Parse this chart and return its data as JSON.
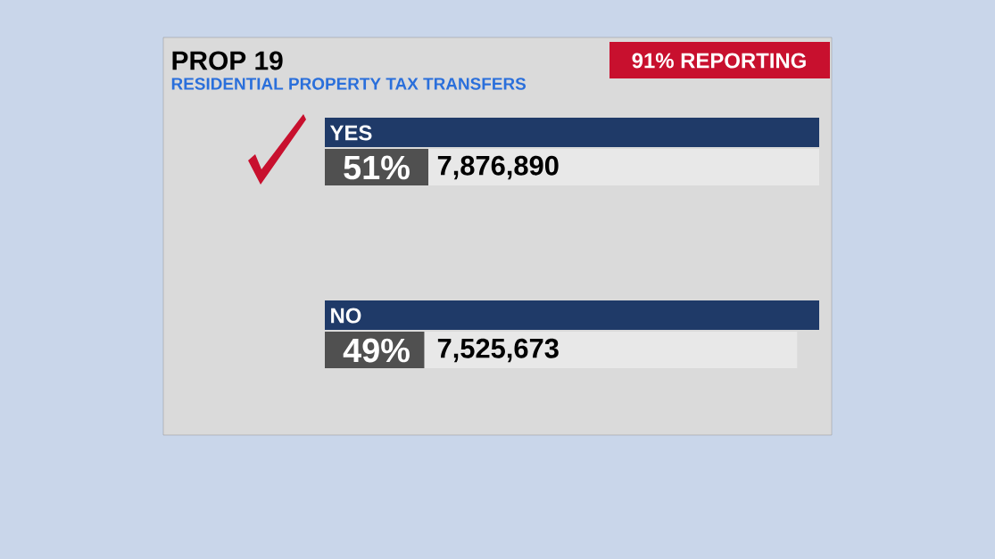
{
  "chart_data": {
    "type": "other",
    "title": "PROP 19",
    "subtitle": "RESIDENTIAL PROPERTY TAX TRANSFERS",
    "categories": [
      "YES",
      "NO"
    ],
    "series": [
      {
        "values": [
          51,
          49
        ],
        "value_labels": [
          "51%",
          "49%"
        ]
      },
      {
        "values": [
          7876890,
          7525673
        ],
        "value_labels": [
          "7,876,890",
          "7,525,673"
        ]
      }
    ],
    "annotations": [
      "91% REPORTING"
    ]
  }
}
